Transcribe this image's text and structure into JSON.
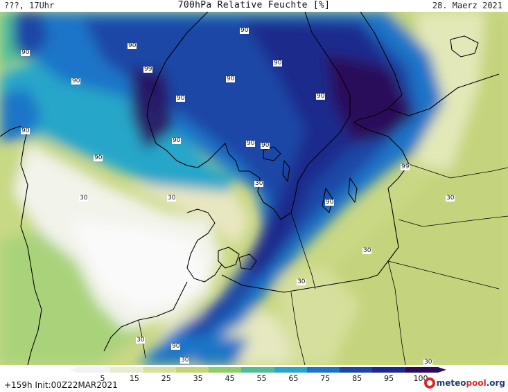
{
  "header": {
    "time_label": "???, 17Uhr",
    "title": "700hPa Relative Feuchte [%]",
    "date": "28. Maerz 2021"
  },
  "map": {
    "region": "Northern Europe / Scandinavia / Baltic",
    "contour_labels": [
      "90",
      "90",
      "90",
      "90",
      "99",
      "90",
      "90",
      "90",
      "90",
      "90",
      "90",
      "90",
      "90",
      "90",
      "99",
      "90",
      "30",
      "30",
      "30",
      "30",
      "30",
      "30",
      "30",
      "90",
      "30",
      "30"
    ]
  },
  "colorbar": {
    "labels": [
      "5",
      "15",
      "25",
      "35",
      "45",
      "55",
      "65",
      "75",
      "85",
      "95",
      "100"
    ],
    "colors": [
      "#f3f3f3",
      "#e7ecd0",
      "#d7df9f",
      "#c3d579",
      "#8fcc6c",
      "#4fbe98",
      "#26a6c9",
      "#1c74c8",
      "#1c46a6",
      "#1a2a8c",
      "#2a0a5a"
    ]
  },
  "footer": {
    "forecast_info": "+159h  Init:00Z22MAR2021",
    "logo_brand": "meteo",
    "logo_brand2": "pool",
    "logo_tld": ".org"
  }
}
